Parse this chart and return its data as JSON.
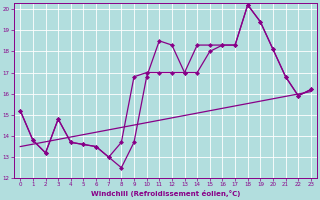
{
  "xlabel": "Windchill (Refroidissement éolien,°C)",
  "xlim": [
    -0.5,
    23.5
  ],
  "ylim": [
    12,
    20.3
  ],
  "xticks": [
    0,
    1,
    2,
    3,
    4,
    5,
    6,
    7,
    8,
    9,
    10,
    11,
    12,
    13,
    14,
    15,
    16,
    17,
    18,
    19,
    20,
    21,
    22,
    23
  ],
  "yticks": [
    12,
    13,
    14,
    15,
    16,
    17,
    18,
    19,
    20
  ],
  "background_color": "#b2dede",
  "grid_color": "#ffffff",
  "line_color": "#880088",
  "line1_x": [
    0,
    1,
    2,
    3,
    4,
    5,
    6,
    7,
    8,
    9,
    10,
    11,
    12,
    13,
    14,
    15,
    16,
    17,
    18,
    19,
    20,
    21,
    22,
    23
  ],
  "line1_y": [
    15.2,
    13.8,
    13.2,
    14.8,
    13.7,
    13.6,
    13.5,
    13.0,
    12.5,
    13.7,
    16.8,
    18.5,
    18.3,
    17.0,
    17.0,
    18.0,
    18.3,
    18.3,
    20.2,
    19.4,
    18.1,
    16.8,
    15.9,
    16.2
  ],
  "line2_x": [
    0,
    1,
    2,
    3,
    4,
    5,
    6,
    7,
    8,
    9,
    10,
    11,
    12,
    13,
    14,
    15,
    16,
    17,
    18,
    19,
    20,
    21,
    22,
    23
  ],
  "line2_y": [
    15.2,
    13.8,
    13.2,
    14.8,
    13.7,
    13.6,
    13.5,
    13.0,
    13.7,
    16.8,
    17.0,
    17.0,
    17.0,
    17.0,
    18.3,
    18.3,
    18.3,
    18.3,
    20.2,
    19.4,
    18.1,
    16.8,
    15.9,
    16.2
  ],
  "line3_x": [
    0,
    23
  ],
  "line3_y": [
    13.5,
    16.1
  ],
  "marker": "D",
  "markersize": 2.0,
  "linewidth": 0.9
}
